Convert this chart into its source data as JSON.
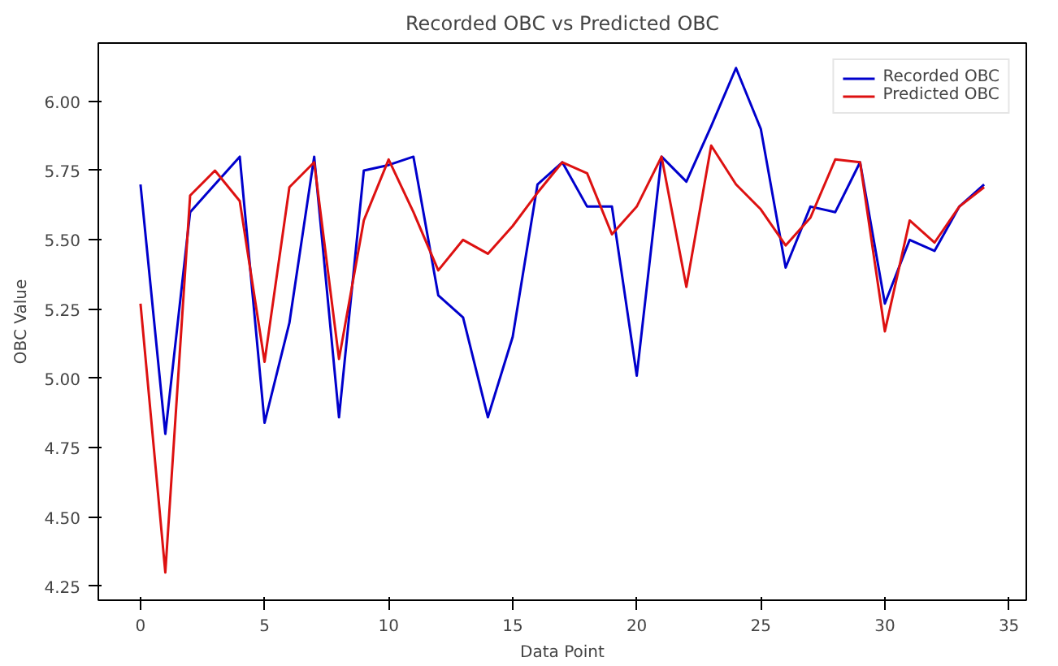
{
  "chart_data": {
    "type": "line",
    "title": "Recorded OBC vs Predicted OBC",
    "xlabel": "Data Point",
    "ylabel": "OBC Value",
    "x": [
      0,
      1,
      2,
      3,
      4,
      5,
      6,
      7,
      8,
      9,
      10,
      11,
      12,
      13,
      14,
      15,
      16,
      17,
      18,
      19,
      20,
      21,
      22,
      23,
      24,
      25,
      26,
      27,
      28,
      29,
      30,
      31,
      32,
      33,
      34
    ],
    "series": [
      {
        "name": "Recorded OBC",
        "color": "#0000cc",
        "values": [
          5.7,
          4.8,
          5.6,
          5.7,
          5.8,
          4.84,
          5.2,
          5.8,
          4.86,
          5.75,
          5.77,
          5.8,
          5.3,
          5.22,
          4.86,
          5.15,
          5.7,
          5.78,
          5.62,
          5.62,
          5.01,
          5.8,
          5.71,
          5.91,
          6.12,
          5.9,
          5.4,
          5.62,
          5.6,
          5.78,
          5.27,
          5.5,
          5.46,
          5.62,
          5.7
        ]
      },
      {
        "name": "Predicted OBC",
        "color": "#dd1111",
        "values": [
          5.27,
          4.3,
          5.66,
          5.75,
          5.64,
          5.06,
          5.69,
          5.78,
          5.07,
          5.57,
          5.79,
          5.6,
          5.39,
          5.5,
          5.45,
          5.55,
          5.67,
          5.78,
          5.74,
          5.52,
          5.62,
          5.8,
          5.33,
          5.84,
          5.7,
          5.61,
          5.48,
          5.58,
          5.79,
          5.78,
          5.17,
          5.57,
          5.49,
          5.62,
          5.69
        ]
      }
    ],
    "xlim": [
      -1.7,
      35.7
    ],
    "ylim": [
      4.2,
      6.21
    ],
    "xticks": [
      0,
      5,
      10,
      15,
      20,
      25,
      30,
      35
    ],
    "yticks": [
      {
        "value": 4.25,
        "label": "4.25"
      },
      {
        "value": 4.5,
        "label": "4.50"
      },
      {
        "value": 4.75,
        "label": "4.75"
      },
      {
        "value": 5.0,
        "label": "5.00"
      },
      {
        "value": 5.25,
        "label": "5.25"
      },
      {
        "value": 5.5,
        "label": "5.50"
      },
      {
        "value": 5.75,
        "label": "5.75"
      },
      {
        "value": 6.0,
        "label": "6.00"
      }
    ],
    "grid": false,
    "legend": "top right"
  }
}
